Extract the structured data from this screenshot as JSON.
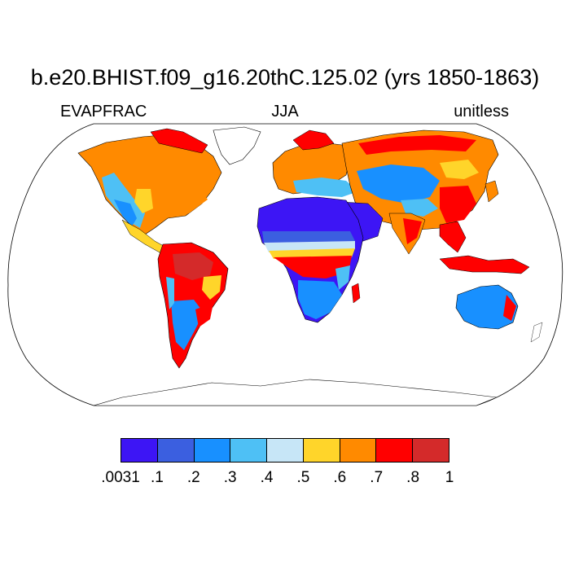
{
  "title": "b.e20.BHIST.f09_g16.20thC.125.02 (yrs 1850-1863)",
  "left_string": "EVAPFRAC",
  "center_string": "JJA",
  "right_string": "unitless",
  "colorbar": {
    "colors": [
      "#3d15f5",
      "#3b5fe0",
      "#1890ff",
      "#4ec0f5",
      "#c7e6f7",
      "#ffd52a",
      "#ff8a00",
      "#ff0000",
      "#d42a2a"
    ],
    "labels": [
      ".0031",
      ".1",
      ".2",
      ".3",
      ".4",
      ".5",
      ".6",
      ".7",
      ".8",
      "1"
    ]
  },
  "map": {
    "projection": "Robinson",
    "variable": "EVAPFRAC",
    "season": "JJA",
    "land_fill_note": "ocean and Antarctica shown white (no data)"
  }
}
